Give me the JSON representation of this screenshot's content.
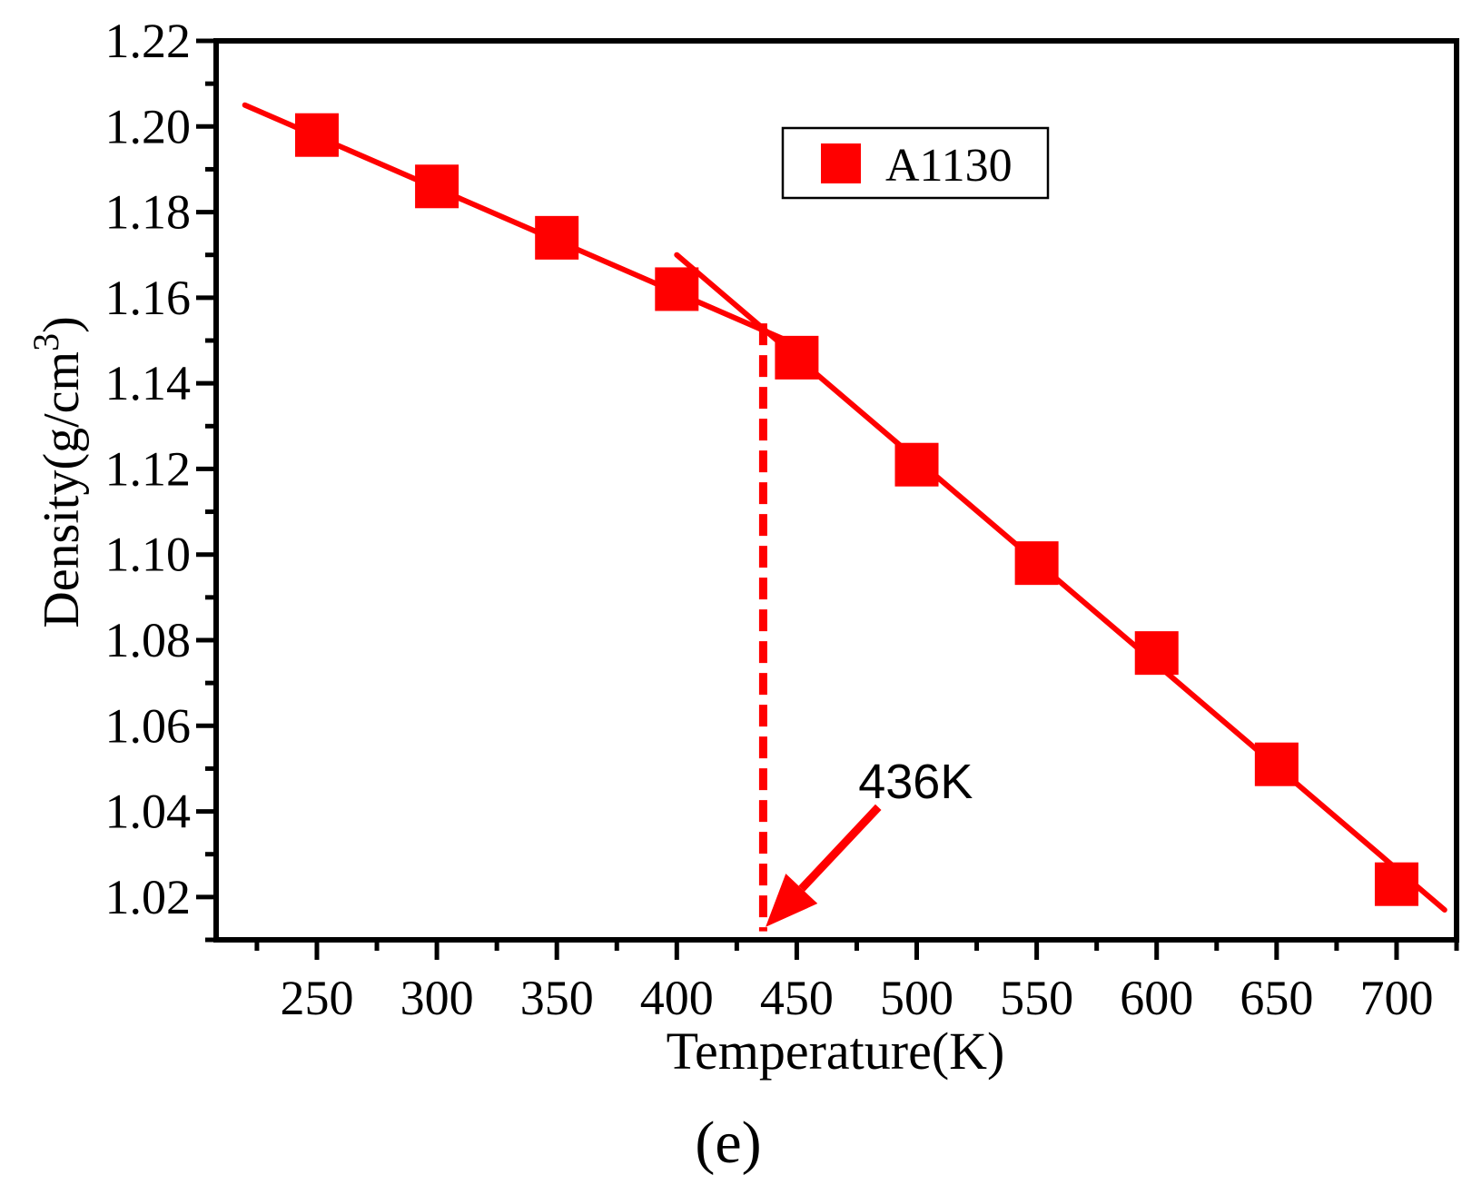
{
  "figure": {
    "panel_label": "(e)"
  },
  "chart_data": {
    "type": "scatter",
    "xlabel": "Temperature(K)",
    "ylabel_prefix": "Density(g/cm",
    "ylabel_superscript": "3",
    "ylabel_suffix": ")",
    "xlim": [
      208,
      725
    ],
    "ylim": [
      1.01,
      1.22
    ],
    "x_ticks": [
      250,
      300,
      350,
      400,
      450,
      500,
      550,
      600,
      650,
      700
    ],
    "x_tick_labels": [
      "250",
      "300",
      "350",
      "400",
      "450",
      "500",
      "550",
      "600",
      "650",
      "700"
    ],
    "y_ticks": [
      1.02,
      1.04,
      1.06,
      1.08,
      1.1,
      1.12,
      1.14,
      1.16,
      1.18,
      1.2,
      1.22
    ],
    "y_tick_labels": [
      "1.02",
      "1.04",
      "1.06",
      "1.08",
      "1.10",
      "1.12",
      "1.14",
      "1.16",
      "1.18",
      "1.20",
      "1.22"
    ],
    "grid": false,
    "legend_position": "top-right",
    "series": [
      {
        "name": "A1130",
        "color": "#ff0000",
        "marker": "square",
        "x": [
          250,
          300,
          350,
          400,
          450,
          500,
          550,
          600,
          650,
          700
        ],
        "y": [
          1.198,
          1.186,
          1.174,
          1.162,
          1.146,
          1.121,
          1.098,
          1.077,
          1.051,
          1.023
        ]
      }
    ],
    "fit_lines": [
      {
        "x": [
          220,
          450
        ],
        "y": [
          1.205,
          1.149
        ]
      },
      {
        "x": [
          400,
          720
        ],
        "y": [
          1.17,
          1.017
        ]
      }
    ],
    "vertical_marker": {
      "x": 436,
      "y": [
        1.012,
        1.154
      ],
      "style": "dashed",
      "color": "#ff0000"
    },
    "annotation": {
      "text": "436K",
      "color": "#000000",
      "arrow_color": "#ff0000",
      "arrow_from": [
        484,
        1.041
      ],
      "arrow_to": [
        437,
        1.013
      ]
    }
  }
}
